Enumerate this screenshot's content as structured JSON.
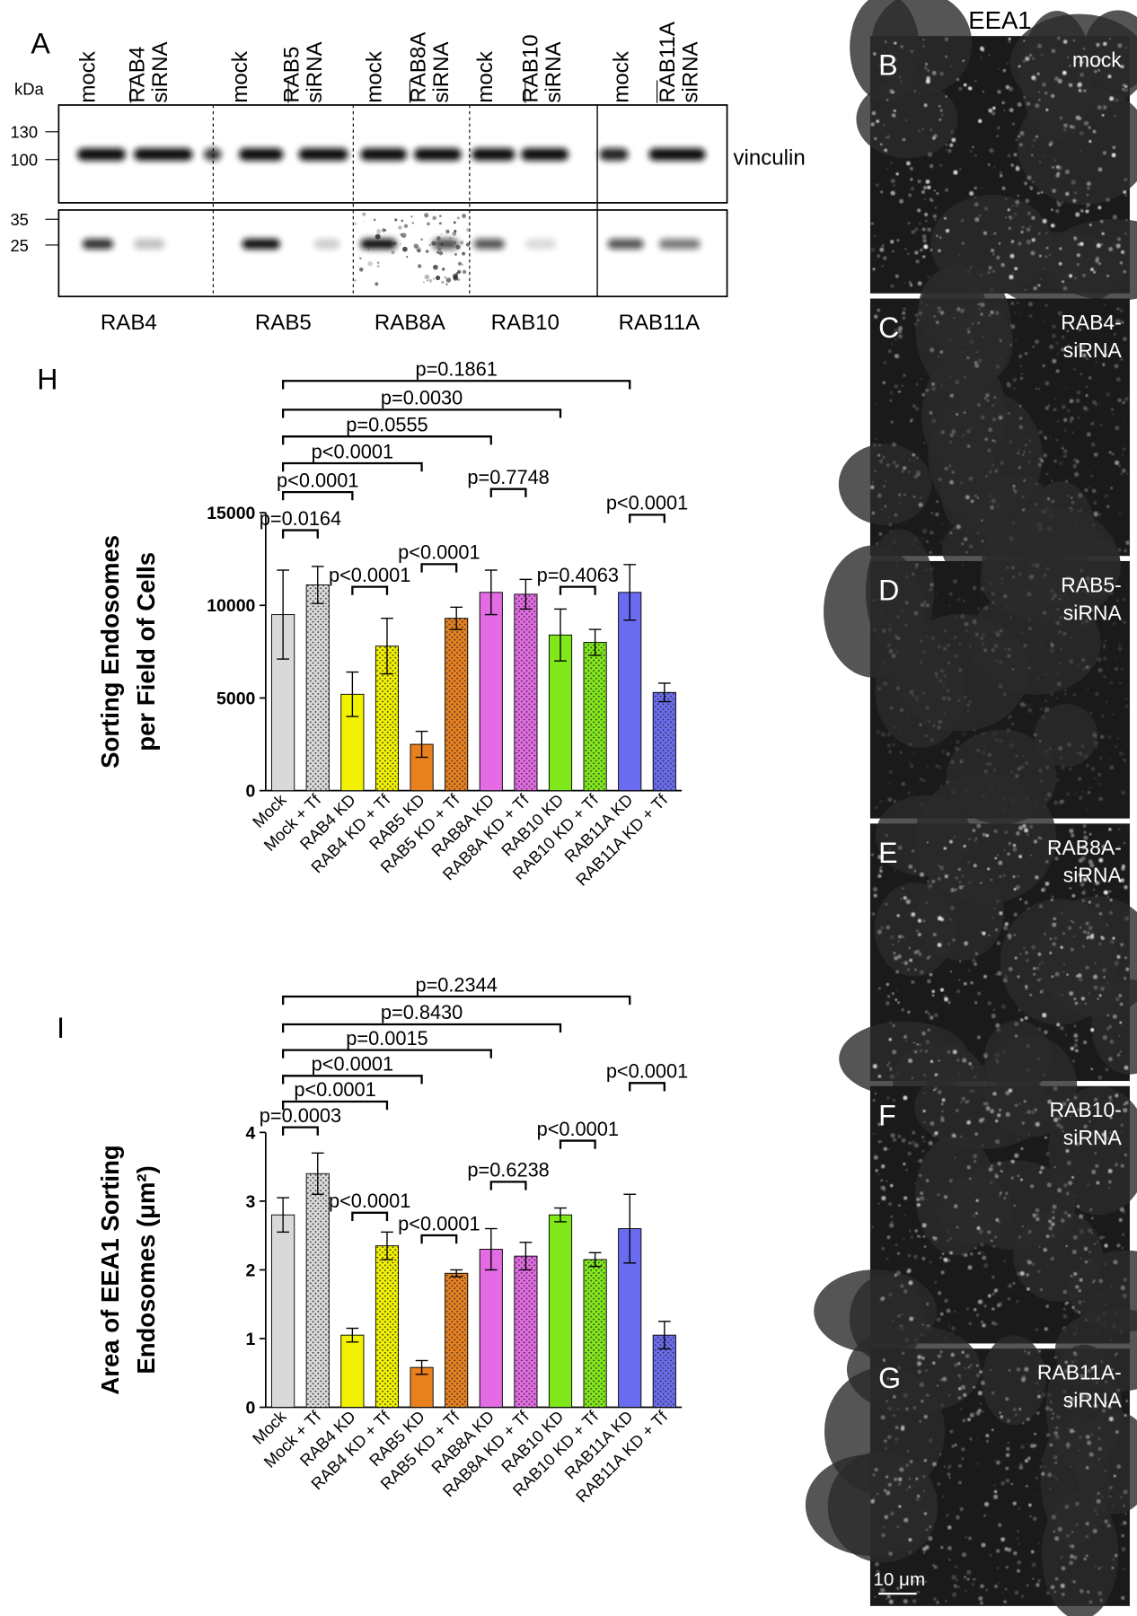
{
  "blot": {
    "panel": "A",
    "unit": "kDa",
    "markers_top": [
      130,
      100
    ],
    "markers_bottom": [
      35,
      25
    ],
    "lanes": [
      {
        "control": "mock",
        "knockdown": [
          "RAB4",
          "siRNA"
        ]
      },
      {
        "control": "mock",
        "knockdown": [
          "RAB5",
          "siRNA"
        ]
      },
      {
        "control": "mock",
        "knockdown": [
          "RAB8A",
          "siRNA"
        ]
      },
      {
        "control": "mock",
        "knockdown": [
          "RAB10",
          "siRNA"
        ]
      },
      {
        "control": "mock",
        "knockdown": [
          "RAB11A",
          "siRNA"
        ]
      }
    ],
    "upper_protein": "vinculin",
    "targets": [
      "RAB4",
      "RAB5",
      "RAB8A",
      "RAB10",
      "RAB11A"
    ]
  },
  "micrographs": {
    "title": "EEA1",
    "panels": [
      {
        "letter": "B",
        "label": [
          "mock"
        ]
      },
      {
        "letter": "C",
        "label": [
          "RAB4-",
          "siRNA"
        ]
      },
      {
        "letter": "D",
        "label": [
          "RAB5-",
          "siRNA"
        ]
      },
      {
        "letter": "E",
        "label": [
          "RAB8A-",
          "siRNA"
        ]
      },
      {
        "letter": "F",
        "label": [
          "RAB10-",
          "siRNA"
        ]
      },
      {
        "letter": "G",
        "label": [
          "RAB11A-",
          "siRNA"
        ]
      }
    ],
    "scale_bar": "10 μm"
  },
  "chart_data": [
    {
      "type": "bar",
      "panel": "H",
      "ylabel": [
        "Sorting Endosomes",
        "per Field of Cells"
      ],
      "categories": [
        "Mock",
        "Mock + Tf",
        "RAB4 KD",
        "RAB4 KD + Tf",
        "RAB5 KD",
        "RAB5 KD + Tf",
        "RAB8A KD",
        "RAB8A KD + Tf",
        "RAB10 KD",
        "RAB10 KD + Tf",
        "RAB11A KD",
        "RAB11A KD + Tf"
      ],
      "values": [
        9500,
        11100,
        5200,
        7800,
        2500,
        9300,
        10700,
        10600,
        8400,
        8000,
        10700,
        5300
      ],
      "errors": [
        2400,
        1000,
        1200,
        1500,
        700,
        600,
        1200,
        800,
        1400,
        700,
        1500,
        500
      ],
      "colors": [
        "#d9d9d9",
        "#d9d9d9",
        "#f2f200",
        "#f2f200",
        "#e8801e",
        "#e8801e",
        "#e36be3",
        "#e36be3",
        "#80e81a",
        "#80e81a",
        "#6b6bf0",
        "#6b6bf0"
      ],
      "dotted": [
        false,
        true,
        false,
        true,
        false,
        true,
        false,
        true,
        false,
        true,
        false,
        true
      ],
      "ylim": [
        0,
        15000
      ],
      "yticks": [
        0,
        5000,
        10000,
        15000
      ],
      "annotations": [
        {
          "label": "p=0.1861",
          "pair": [
            0,
            10
          ]
        },
        {
          "label": "p=0.0030",
          "pair": [
            0,
            8
          ]
        },
        {
          "label": "p=0.0555",
          "pair": [
            0,
            6
          ]
        },
        {
          "label": "p<0.0001",
          "pair": [
            0,
            4
          ]
        },
        {
          "label": "p<0.0001",
          "pair": [
            0,
            2
          ]
        },
        {
          "label": "p=0.0164",
          "pair": [
            0,
            1
          ]
        },
        {
          "label": "p<0.0001",
          "pair": [
            2,
            3
          ]
        },
        {
          "label": "p<0.0001",
          "pair": [
            4,
            5
          ]
        },
        {
          "label": "p=0.7748",
          "pair": [
            6,
            7
          ]
        },
        {
          "label": "p=0.4063",
          "pair": [
            8,
            9
          ]
        },
        {
          "label": "p<0.0001",
          "pair": [
            10,
            11
          ]
        }
      ]
    },
    {
      "type": "bar",
      "panel": "I",
      "ylabel": [
        "Area of EEA1 Sorting",
        "Endosomes (μm²)"
      ],
      "categories": [
        "Mock",
        "Mock + Tf",
        "RAB4 KD",
        "RAB4 KD + Tf",
        "RAB5 KD",
        "RAB5 KD + Tf",
        "RAB8A KD",
        "RAB8A KD + Tf",
        "RAB10 KD",
        "RAB10 KD + Tf",
        "RAB11A KD",
        "RAB11A KD + Tf"
      ],
      "values": [
        2.8,
        3.4,
        1.05,
        2.35,
        0.58,
        1.95,
        2.3,
        2.2,
        2.8,
        2.15,
        2.6,
        1.05
      ],
      "errors": [
        0.25,
        0.3,
        0.1,
        0.2,
        0.1,
        0.05,
        0.3,
        0.2,
        0.1,
        0.1,
        0.5,
        0.2
      ],
      "colors": [
        "#d9d9d9",
        "#d9d9d9",
        "#f2f200",
        "#f2f200",
        "#e8801e",
        "#e8801e",
        "#e36be3",
        "#e36be3",
        "#80e81a",
        "#80e81a",
        "#6b6bf0",
        "#6b6bf0"
      ],
      "dotted": [
        false,
        true,
        false,
        true,
        false,
        true,
        false,
        true,
        false,
        true,
        false,
        true
      ],
      "ylim": [
        0,
        4
      ],
      "yticks": [
        0,
        1,
        2,
        3,
        4
      ],
      "annotations": [
        {
          "label": "p=0.2344",
          "pair": [
            0,
            10
          ]
        },
        {
          "label": "p=0.8430",
          "pair": [
            0,
            8
          ]
        },
        {
          "label": "p=0.0015",
          "pair": [
            0,
            6
          ]
        },
        {
          "label": "p<0.0001",
          "pair": [
            0,
            4
          ]
        },
        {
          "label": "p<0.0001",
          "pair": [
            0,
            3
          ]
        },
        {
          "label": "p=0.0003",
          "pair": [
            0,
            1
          ]
        },
        {
          "label": "p<0.0001",
          "pair": [
            2,
            3
          ]
        },
        {
          "label": "p<0.0001",
          "pair": [
            4,
            5
          ]
        },
        {
          "label": "p=0.6238",
          "pair": [
            6,
            7
          ]
        },
        {
          "label": "p<0.0001",
          "pair": [
            8,
            9
          ]
        },
        {
          "label": "p<0.0001",
          "pair": [
            10,
            11
          ]
        }
      ]
    }
  ]
}
